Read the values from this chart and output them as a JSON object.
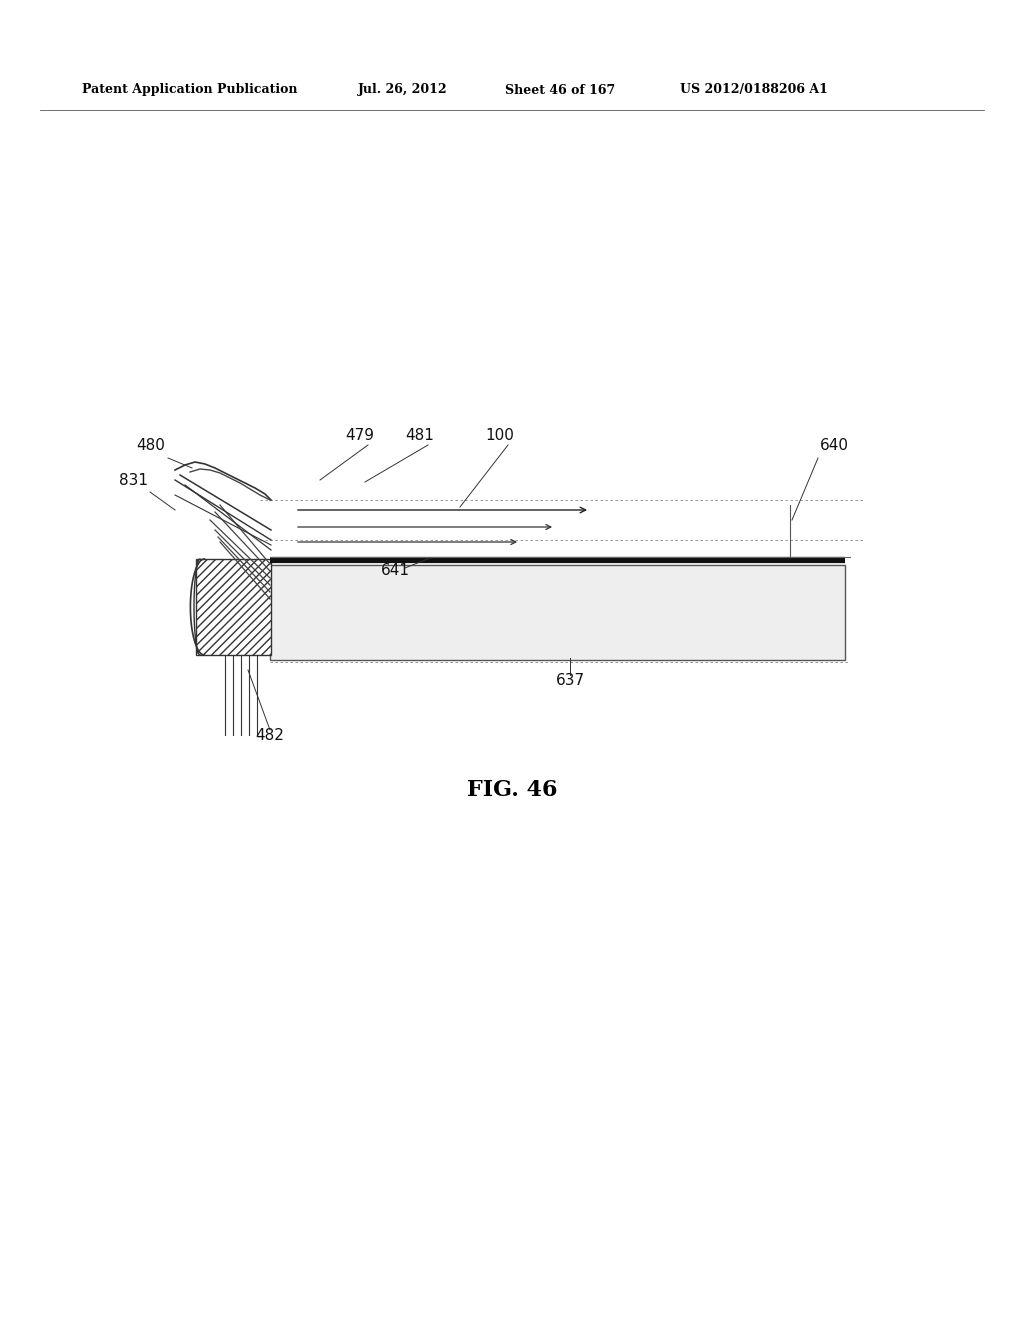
{
  "bg_color": "#ffffff",
  "header_text": "Patent Application Publication",
  "header_date": "Jul. 26, 2012",
  "header_sheet": "Sheet 46 of 167",
  "header_patent": "US 2012/0188206 A1",
  "fig_label": "FIG. 46"
}
